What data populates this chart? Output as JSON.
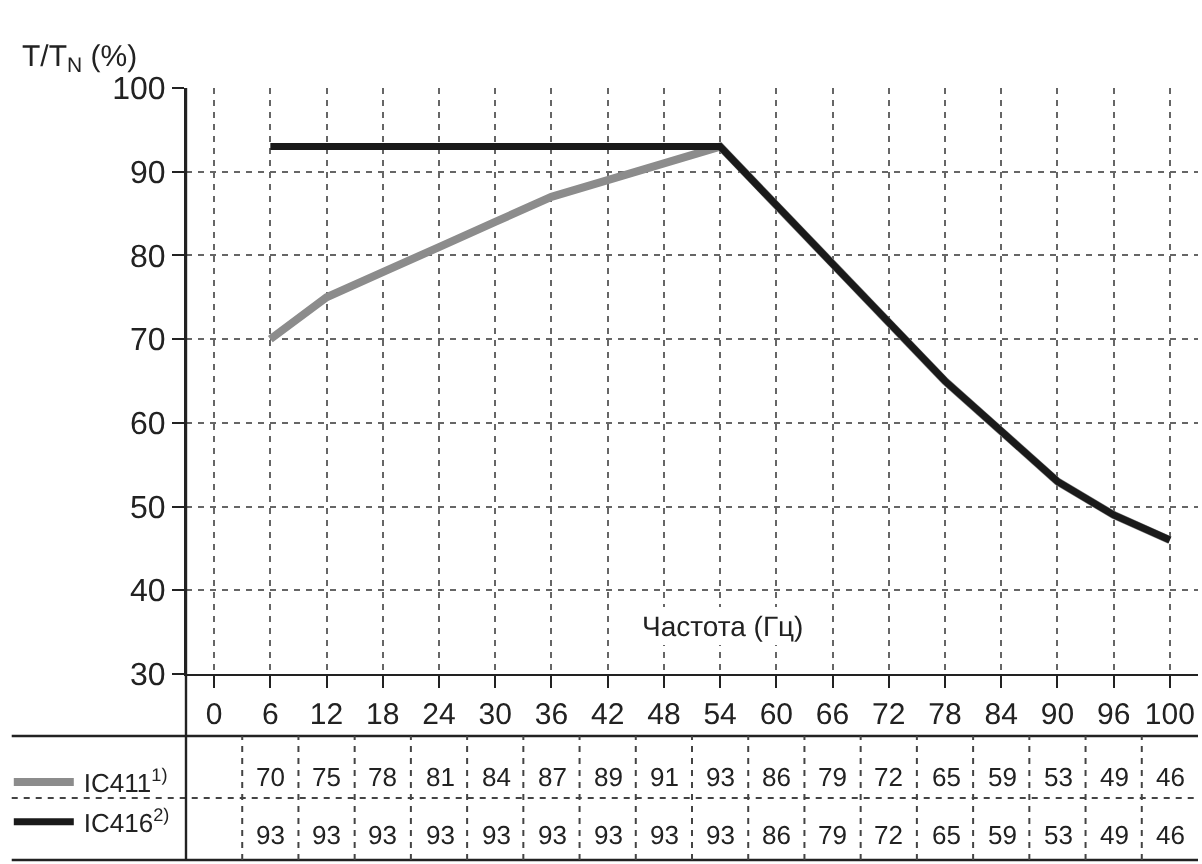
{
  "chart_data": {
    "type": "line",
    "ylabel": "T/T$_{N}$ (%)",
    "xlabel": "Частота (Гц)",
    "categories": [
      "0",
      "6",
      "12",
      "18",
      "24",
      "30",
      "36",
      "42",
      "48",
      "54",
      "60",
      "66",
      "72",
      "78",
      "84",
      "90",
      "96",
      "100"
    ],
    "series": [
      {
        "name": "IC411$^{1)}$",
        "color": "#8c8c8c",
        "values": [
          null,
          70,
          75,
          78,
          81,
          84,
          87,
          89,
          91,
          93,
          86,
          79,
          72,
          65,
          59,
          53,
          49,
          46
        ]
      },
      {
        "name": "IC416$^{2)}$",
        "color": "#1a1a1a",
        "values": [
          null,
          93,
          93,
          93,
          93,
          93,
          93,
          93,
          93,
          93,
          86,
          79,
          72,
          65,
          59,
          53,
          49,
          46
        ]
      }
    ],
    "ylim": [
      30,
      100
    ],
    "yticks": [
      30,
      40,
      50,
      60,
      70,
      80,
      90,
      100
    ],
    "grid": true,
    "legend": "bottom left",
    "line_style": "solid",
    "data_labels": true
  }
}
